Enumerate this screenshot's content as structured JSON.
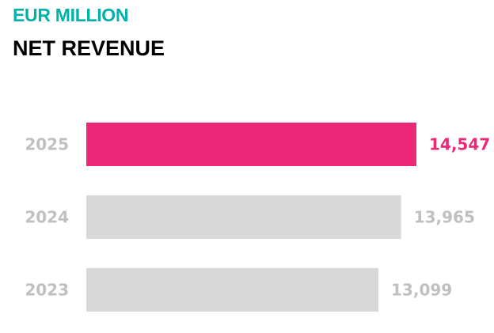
{
  "chart_data": {
    "type": "bar",
    "orientation": "horizontal",
    "subtitle": "EUR MILLION",
    "title": "NET REVENUE",
    "categories": [
      "2025",
      "2024",
      "2023"
    ],
    "values": [
      14547,
      13965,
      13099
    ],
    "value_labels": [
      "14,547",
      "13,965",
      "13,099"
    ],
    "highlight_color": "#ec2778",
    "bar_color": "#d9d9d9",
    "label_color": "#c0c0c0",
    "accent_color": "#00b2a9",
    "grid": false,
    "legend": "none"
  }
}
